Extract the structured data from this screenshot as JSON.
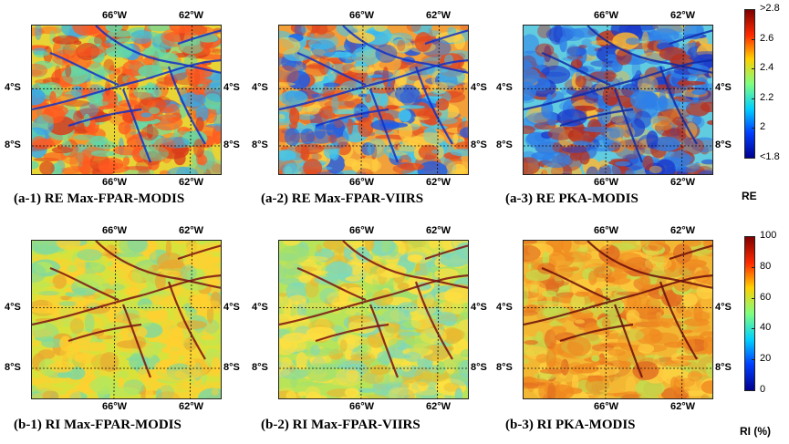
{
  "panels": [
    {
      "caption": "(a-1) RE Max-FPAR-MODIS",
      "scheme": "re1"
    },
    {
      "caption": "(a-2) RE Max-FPAR-VIIRS",
      "scheme": "re2"
    },
    {
      "caption": "(a-3) RE PKA-MODIS",
      "scheme": "re3"
    },
    {
      "caption": "(b-1) RI Max-FPAR-MODIS",
      "scheme": "ri1"
    },
    {
      "caption": "(b-2) RI Max-FPAR-VIIRS",
      "scheme": "ri2"
    },
    {
      "caption": "(b-3) RI PKA-MODIS",
      "scheme": "ri3"
    }
  ],
  "axis_labels": {
    "lon_left": "66°W",
    "lon_right": "62°W",
    "lat_top": "4°S",
    "lat_bottom": "8°S"
  },
  "colorbar_re": {
    "title": "RE",
    "ticks": [
      ">2.8",
      "2.6",
      "2.4",
      "2.2",
      "2",
      "<1.8"
    ],
    "colors": [
      "#7f0000",
      "#ff2a00",
      "#ffd000",
      "#7fff7f",
      "#00d0ff",
      "#0040ff",
      "#00008f"
    ]
  },
  "colorbar_ri": {
    "title": "RI (%)",
    "ticks": [
      "100",
      "80",
      "60",
      "40",
      "20",
      "0"
    ],
    "colors": [
      "#7f0000",
      "#ff2a00",
      "#ffd000",
      "#7fff7f",
      "#00d0ff",
      "#0040ff",
      "#00008f"
    ]
  }
}
